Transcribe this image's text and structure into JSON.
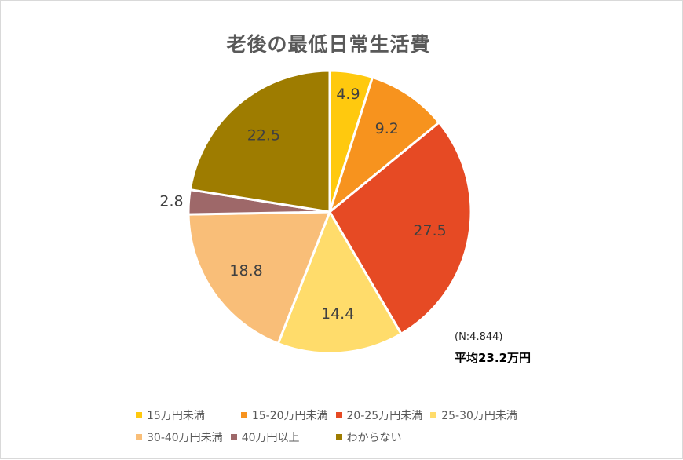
{
  "chart_data": {
    "type": "pie",
    "title": "老後の最低日常生活費",
    "categories": [
      "15万円未満",
      "15-20万円未満",
      "20-25万円未満",
      "25-30万円未満",
      "30-40万円未満",
      "40万円以上",
      "わからない"
    ],
    "values": [
      4.9,
      9.2,
      27.5,
      14.4,
      18.8,
      2.8,
      22.5
    ],
    "colors": [
      "#FFC90E",
      "#F7931E",
      "#E64A24",
      "#FFDC6B",
      "#F9BE78",
      "#9E6869",
      "#9E7C00"
    ],
    "data_labels": [
      "4.9",
      "9.2",
      "27.5",
      "14.4",
      "18.8",
      "2.8",
      "22.5"
    ],
    "start_angle_deg": 0,
    "direction": "clockwise",
    "legend_position": "bottom",
    "annotations": [
      "(N:4.844)",
      "平均23.2万円"
    ]
  },
  "title": "老後の最低日常生活費",
  "note": "(N:4.844)",
  "average": "平均23.2万円",
  "legend": {
    "row1": [
      {
        "label": "15万円未満",
        "color": "#FFC90E"
      },
      {
        "label": "15-20万円未満",
        "color": "#F7931E"
      },
      {
        "label": "20-25万円未満",
        "color": "#E64A24"
      },
      {
        "label": "25-30万円未満",
        "color": "#FFDC6B"
      }
    ],
    "row2": [
      {
        "label": "30-40万円未満",
        "color": "#F9BE78"
      },
      {
        "label": "40万円以上",
        "color": "#9E6869"
      },
      {
        "label": "わからない",
        "color": "#9E7C00"
      }
    ]
  }
}
